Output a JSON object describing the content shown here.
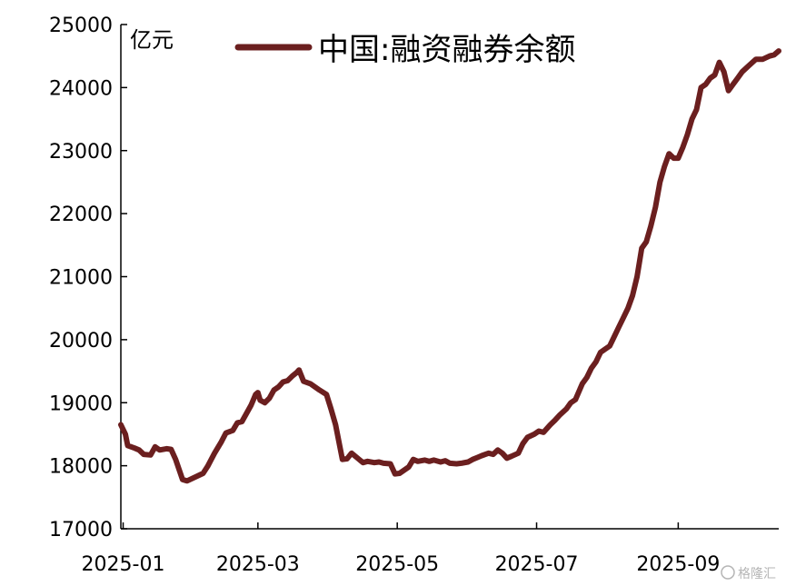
{
  "chart_data": {
    "type": "line",
    "title": "",
    "xlabel": "",
    "ylabel": "亿元",
    "unit_label": "亿元",
    "ylim": [
      17000,
      25000
    ],
    "yticks": [
      17000,
      18000,
      19000,
      20000,
      21000,
      22000,
      23000,
      24000,
      25000
    ],
    "xlim": [
      "2024-12-31",
      "2025-10-15"
    ],
    "xticks": [
      "2025-01-01",
      "2025-03-01",
      "2025-05-01",
      "2025-07-01",
      "2025-09-01"
    ],
    "xtick_labels": [
      "2025-01",
      "2025-03",
      "2025-05",
      "2025-07",
      "2025-09"
    ],
    "grid": false,
    "legend_position": "top",
    "series": [
      {
        "name": "中国:融资融券余额",
        "color": "#6b1f1f",
        "points": [
          [
            "2024-12-31",
            18650
          ],
          [
            "2025-01-02",
            18500
          ],
          [
            "2025-01-03",
            18320
          ],
          [
            "2025-01-06",
            18280
          ],
          [
            "2025-01-08",
            18250
          ],
          [
            "2025-01-10",
            18180
          ],
          [
            "2025-01-13",
            18170
          ],
          [
            "2025-01-15",
            18300
          ],
          [
            "2025-01-17",
            18250
          ],
          [
            "2025-01-20",
            18270
          ],
          [
            "2025-01-22",
            18260
          ],
          [
            "2025-01-24",
            18100
          ],
          [
            "2025-01-27",
            17780
          ],
          [
            "2025-01-29",
            17760
          ],
          [
            "2025-02-05",
            17880
          ],
          [
            "2025-02-07",
            17990
          ],
          [
            "2025-02-10",
            18200
          ],
          [
            "2025-02-13",
            18380
          ],
          [
            "2025-02-15",
            18520
          ],
          [
            "2025-02-18",
            18560
          ],
          [
            "2025-02-20",
            18680
          ],
          [
            "2025-02-22",
            18700
          ],
          [
            "2025-02-24",
            18830
          ],
          [
            "2025-02-26",
            18960
          ],
          [
            "2025-02-28",
            19130
          ],
          [
            "2025-03-01",
            19160
          ],
          [
            "2025-03-02",
            19040
          ],
          [
            "2025-03-04",
            19000
          ],
          [
            "2025-03-06",
            19070
          ],
          [
            "2025-03-08",
            19200
          ],
          [
            "2025-03-10",
            19250
          ],
          [
            "2025-03-12",
            19330
          ],
          [
            "2025-03-14",
            19350
          ],
          [
            "2025-03-16",
            19420
          ],
          [
            "2025-03-18",
            19480
          ],
          [
            "2025-03-19",
            19520
          ],
          [
            "2025-03-21",
            19340
          ],
          [
            "2025-03-24",
            19300
          ],
          [
            "2025-03-26",
            19250
          ],
          [
            "2025-03-28",
            19200
          ],
          [
            "2025-03-31",
            19130
          ],
          [
            "2025-04-02",
            18900
          ],
          [
            "2025-04-04",
            18650
          ],
          [
            "2025-04-07",
            18100
          ],
          [
            "2025-04-09",
            18110
          ],
          [
            "2025-04-11",
            18200
          ],
          [
            "2025-04-14",
            18110
          ],
          [
            "2025-04-16",
            18050
          ],
          [
            "2025-04-18",
            18070
          ],
          [
            "2025-04-21",
            18050
          ],
          [
            "2025-04-23",
            18060
          ],
          [
            "2025-04-25",
            18040
          ],
          [
            "2025-04-28",
            18030
          ],
          [
            "2025-04-30",
            17870
          ],
          [
            "2025-05-02",
            17880
          ],
          [
            "2025-05-06",
            17980
          ],
          [
            "2025-05-08",
            18100
          ],
          [
            "2025-05-10",
            18070
          ],
          [
            "2025-05-13",
            18090
          ],
          [
            "2025-05-15",
            18070
          ],
          [
            "2025-05-17",
            18090
          ],
          [
            "2025-05-20",
            18060
          ],
          [
            "2025-05-22",
            18080
          ],
          [
            "2025-05-24",
            18040
          ],
          [
            "2025-05-27",
            18030
          ],
          [
            "2025-05-29",
            18040
          ],
          [
            "2025-06-01",
            18060
          ],
          [
            "2025-06-03",
            18100
          ],
          [
            "2025-06-05",
            18130
          ],
          [
            "2025-06-07",
            18160
          ],
          [
            "2025-06-10",
            18200
          ],
          [
            "2025-06-12",
            18180
          ],
          [
            "2025-06-14",
            18250
          ],
          [
            "2025-06-16",
            18200
          ],
          [
            "2025-06-18",
            18120
          ],
          [
            "2025-06-20",
            18150
          ],
          [
            "2025-06-23",
            18200
          ],
          [
            "2025-06-25",
            18350
          ],
          [
            "2025-06-27",
            18450
          ],
          [
            "2025-06-30",
            18500
          ],
          [
            "2025-07-02",
            18550
          ],
          [
            "2025-07-04",
            18530
          ],
          [
            "2025-07-07",
            18650
          ],
          [
            "2025-07-09",
            18720
          ],
          [
            "2025-07-11",
            18800
          ],
          [
            "2025-07-14",
            18900
          ],
          [
            "2025-07-16",
            19000
          ],
          [
            "2025-07-18",
            19050
          ],
          [
            "2025-07-21",
            19300
          ],
          [
            "2025-07-23",
            19400
          ],
          [
            "2025-07-25",
            19550
          ],
          [
            "2025-07-27",
            19650
          ],
          [
            "2025-07-29",
            19800
          ],
          [
            "2025-07-31",
            19850
          ],
          [
            "2025-08-02",
            19900
          ],
          [
            "2025-08-04",
            20050
          ],
          [
            "2025-08-06",
            20200
          ],
          [
            "2025-08-08",
            20350
          ],
          [
            "2025-08-10",
            20500
          ],
          [
            "2025-08-12",
            20700
          ],
          [
            "2025-08-14",
            21000
          ],
          [
            "2025-08-16",
            21450
          ],
          [
            "2025-08-18",
            21550
          ],
          [
            "2025-08-20",
            21800
          ],
          [
            "2025-08-22",
            22100
          ],
          [
            "2025-08-24",
            22500
          ],
          [
            "2025-08-26",
            22750
          ],
          [
            "2025-08-28",
            22950
          ],
          [
            "2025-08-30",
            22880
          ],
          [
            "2025-09-01",
            22880
          ],
          [
            "2025-09-03",
            23050
          ],
          [
            "2025-09-05",
            23250
          ],
          [
            "2025-09-07",
            23500
          ],
          [
            "2025-09-09",
            23650
          ],
          [
            "2025-09-11",
            24000
          ],
          [
            "2025-09-13",
            24050
          ],
          [
            "2025-09-15",
            24150
          ],
          [
            "2025-09-17",
            24200
          ],
          [
            "2025-09-19",
            24400
          ],
          [
            "2025-09-21",
            24250
          ],
          [
            "2025-09-23",
            23950
          ],
          [
            "2025-09-25",
            24050
          ],
          [
            "2025-09-27",
            24150
          ],
          [
            "2025-09-29",
            24250
          ],
          [
            "2025-10-02",
            24350
          ],
          [
            "2025-10-05",
            24450
          ],
          [
            "2025-10-08",
            24450
          ],
          [
            "2025-10-11",
            24500
          ],
          [
            "2025-10-13",
            24520
          ],
          [
            "2025-10-15",
            24580
          ]
        ]
      }
    ]
  },
  "watermark": "格隆汇"
}
